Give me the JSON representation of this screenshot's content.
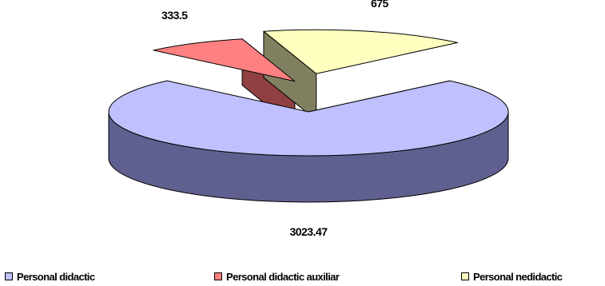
{
  "chart_data": {
    "type": "pie",
    "style": "3d-exploded",
    "title": "",
    "categories": [
      "Personal didactic",
      "Personal didactic auxiliar",
      "Personal nedidactic"
    ],
    "values": [
      3023.47,
      333.5,
      675
    ],
    "value_labels": [
      "3023.47",
      "333.5",
      "675"
    ],
    "colors": [
      "#C0C0FF",
      "#FF8080",
      "#FFFFC0"
    ],
    "side_colors": [
      "#606090",
      "#904040",
      "#808060"
    ],
    "legend_position": "bottom"
  },
  "legend": {
    "items": [
      {
        "label": "Personal didactic",
        "color": "#C0C0FF"
      },
      {
        "label": "Personal didactic auxiliar",
        "color": "#FF8080"
      },
      {
        "label": "Personal nedidactic",
        "color": "#FFFFC0"
      }
    ]
  }
}
